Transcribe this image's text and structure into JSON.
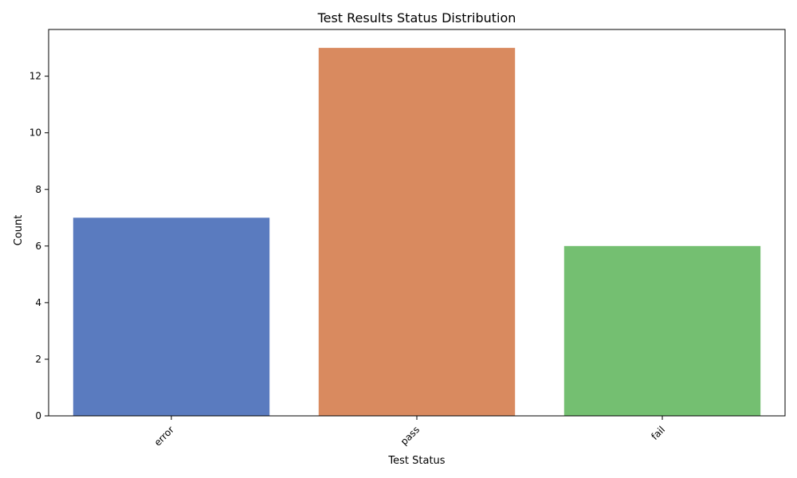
{
  "chart_data": {
    "type": "bar",
    "title": "Test Results Status Distribution",
    "xlabel": "Test Status",
    "ylabel": "Count",
    "categories": [
      "error",
      "pass",
      "fail"
    ],
    "values": [
      7,
      13,
      6
    ],
    "colors": [
      "#5a7bbf",
      "#d98a5f",
      "#74bf71"
    ],
    "ylim": [
      0,
      13.65
    ],
    "yticks": [
      0,
      2,
      4,
      6,
      8,
      10,
      12
    ],
    "grid": false,
    "legend": "none"
  }
}
